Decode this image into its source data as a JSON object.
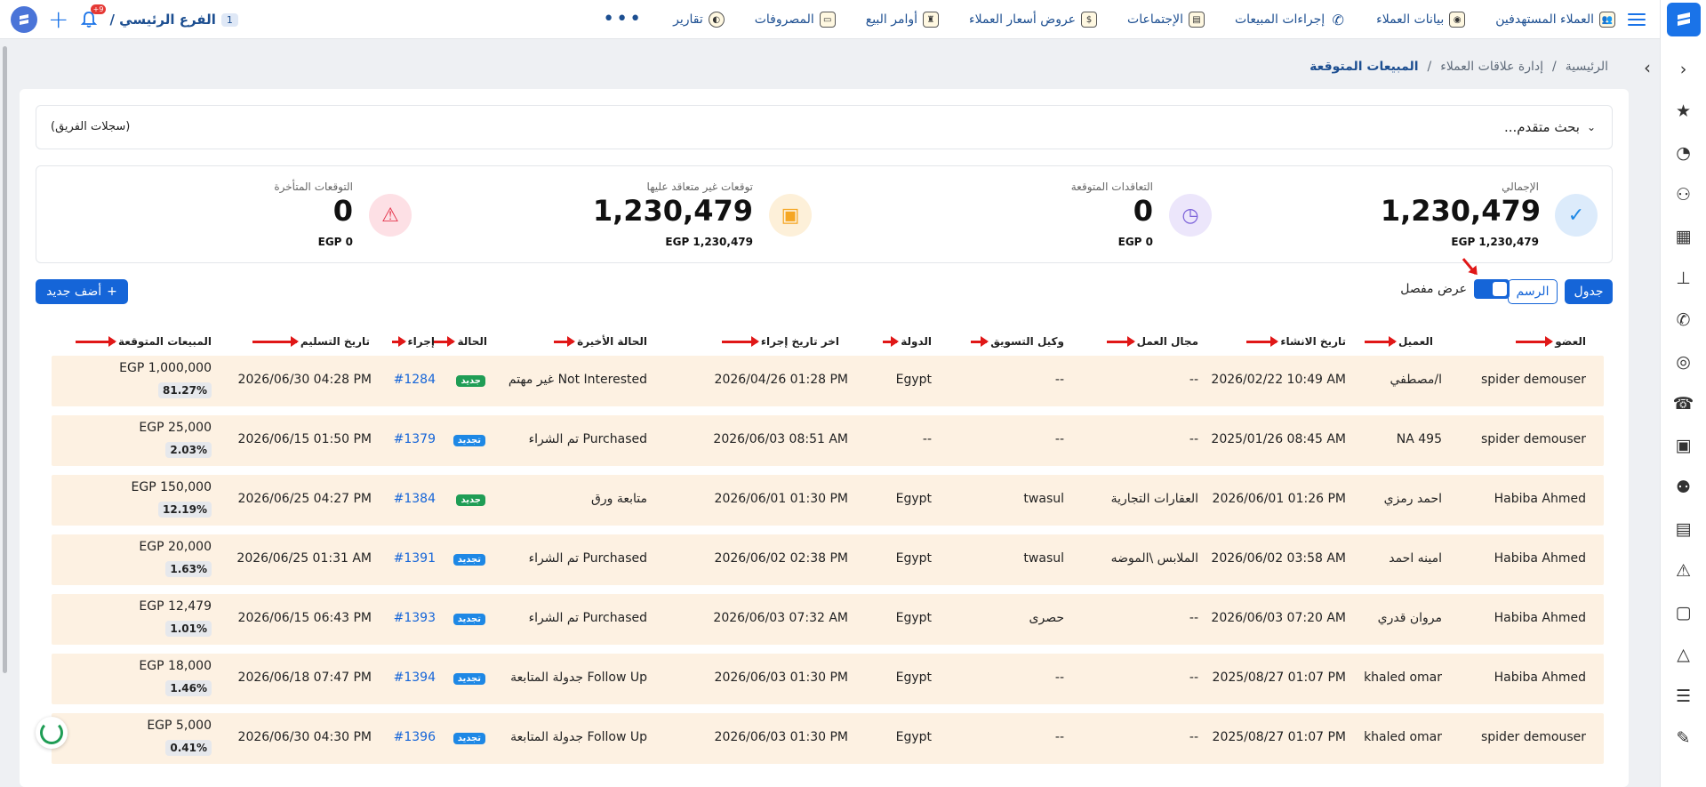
{
  "topbar": {
    "nav": [
      {
        "label": "العملاء المستهدفين",
        "icon": "users-icon"
      },
      {
        "label": "بيانات العملاء",
        "icon": "contact-icon"
      },
      {
        "label": "إجراءات المبيعات",
        "icon": "phone-icon"
      },
      {
        "label": "الإجتماعات",
        "icon": "meeting-icon"
      },
      {
        "label": "عروض أسعار العملاء",
        "icon": "quote-icon"
      },
      {
        "label": "أوامر البيع",
        "icon": "sales-order-icon"
      },
      {
        "label": "المصروفات",
        "icon": "expenses-icon"
      },
      {
        "label": "تقارير",
        "icon": "reports-icon"
      }
    ],
    "branch": "الفرع الرئيسي /",
    "branch_number": "1",
    "notification_count": "+9"
  },
  "breadcrumb": {
    "home": "الرئيسية",
    "section": "إدارة علاقات العملاء",
    "current": "المبيعات المتوقعة",
    "separator": "/"
  },
  "search": {
    "toggle_label": "بحث متقدم...",
    "team_records": "(سجلات الفريق)"
  },
  "stats": [
    {
      "label": "الإجمالي",
      "value": "1,230,479",
      "sub": "EGP 1,230,479",
      "icon": "check-icon",
      "color": "#1e88e5"
    },
    {
      "label": "التعاقدات المتوقعة",
      "value": "0",
      "sub": "EGP 0",
      "icon": "clock-icon",
      "color": "#7b61d9"
    },
    {
      "label": "توقعات غير متعاقد عليها",
      "value": "1,230,479",
      "sub": "EGP 1,230,479",
      "icon": "calendar-clock-icon",
      "color": "#f5a623"
    },
    {
      "label": "التوقعات المتأخرة",
      "value": "0",
      "sub": "EGP 0",
      "icon": "warning-icon",
      "color": "#e53950"
    }
  ],
  "toolbar": {
    "table_label": "جدول",
    "chart_label": "الرسم",
    "detailed_view_label": "عرض مفصل",
    "add_new_label": "أضف جديد"
  },
  "table": {
    "headers": {
      "member": "العضو",
      "client": "العميل",
      "created": "تاريخ الانشاء",
      "field": "مجال العمل",
      "agent": "وكيل التسويق",
      "country": "الدولة",
      "last_action": "اخر تاريخ إجراء",
      "last_status": "الحالة الأخيرة",
      "status": "الحالة",
      "action": "إجراء",
      "delivery": "تاريخ التسليم",
      "expected": "المبيعات المتوقعة"
    },
    "rows": [
      {
        "member": "spider demouser",
        "client": "ا/مصطفي",
        "created": "2026/02/22 10:49 AM",
        "field": "--",
        "agent": "--",
        "country": "Egypt",
        "last_action": "2026/04/26 01:28 PM",
        "last_status": "Not Interested غير مهتم",
        "status": "جديد",
        "status_type": "green",
        "action": "#1284",
        "delivery": "2026/06/30 04:28 PM",
        "amount": "EGP 1,000,000",
        "pct": "81.27%"
      },
      {
        "member": "spider demouser",
        "client": "NA 495",
        "created": "2025/01/26 08:45 AM",
        "field": "--",
        "agent": "--",
        "country": "--",
        "last_action": "2026/06/03 08:51 AM",
        "last_status": "Purchased تم الشراء",
        "status": "تجديد",
        "status_type": "blue",
        "action": "#1379",
        "delivery": "2026/06/15 01:50 PM",
        "amount": "EGP 25,000",
        "pct": "2.03%"
      },
      {
        "member": "Habiba Ahmed",
        "client": "احمد رمزي",
        "created": "2026/06/01 01:26 PM",
        "field": "العقارات التجارية",
        "agent": "twasul",
        "country": "Egypt",
        "last_action": "2026/06/01 01:30 PM",
        "last_status": "متابعة ورق",
        "status": "جديد",
        "status_type": "green",
        "action": "#1384",
        "delivery": "2026/06/25 04:27 PM",
        "amount": "EGP 150,000",
        "pct": "12.19%"
      },
      {
        "member": "Habiba Ahmed",
        "client": "امينه احمد",
        "created": "2026/06/02 03:58 AM",
        "field": "الملابس \\الموضه",
        "agent": "twasul",
        "country": "Egypt",
        "last_action": "2026/06/02 02:38 PM",
        "last_status": "Purchased تم الشراء",
        "status": "تجديد",
        "status_type": "blue",
        "action": "#1391",
        "delivery": "2026/06/25 01:31 AM",
        "amount": "EGP 20,000",
        "pct": "1.63%"
      },
      {
        "member": "Habiba Ahmed",
        "client": "مروان قدري",
        "created": "2026/06/03 07:20 AM",
        "field": "--",
        "agent": "حصرى",
        "country": "Egypt",
        "last_action": "2026/06/03 07:32 AM",
        "last_status": "Purchased تم الشراء",
        "status": "تجديد",
        "status_type": "blue",
        "action": "#1393",
        "delivery": "2026/06/15 06:43 PM",
        "amount": "EGP 12,479",
        "pct": "1.01%"
      },
      {
        "member": "Habiba Ahmed",
        "client": "khaled omar",
        "created": "2025/08/27 01:07 PM",
        "field": "--",
        "agent": "--",
        "country": "Egypt",
        "last_action": "2026/06/03 01:30 PM",
        "last_status": "Follow Up جدولة المتابعة",
        "status": "تجديد",
        "status_type": "blue",
        "action": "#1394",
        "delivery": "2026/06/18 07:47 PM",
        "amount": "EGP 18,000",
        "pct": "1.46%"
      },
      {
        "member": "spider demouser",
        "client": "khaled omar",
        "created": "2025/08/27 01:07 PM",
        "field": "--",
        "agent": "--",
        "country": "Egypt",
        "last_action": "2026/06/03 01:30 PM",
        "last_status": "Follow Up جدولة المتابعة",
        "status": "تجديد",
        "status_type": "blue",
        "action": "#1396",
        "delivery": "2026/06/30 04:30 PM",
        "amount": "EGP 5,000",
        "pct": "0.41%"
      }
    ]
  },
  "sidebar_icons": [
    "chevron-left-icon",
    "star-icon",
    "dashboard-icon",
    "users-cog-icon",
    "building-icon",
    "stamp-icon",
    "phone-call-icon",
    "target-icon",
    "landline-icon",
    "calendar-icon",
    "team-icon",
    "id-card-icon",
    "alert-icon",
    "video-icon",
    "shapes-icon",
    "document-list-icon",
    "pen-icon"
  ]
}
